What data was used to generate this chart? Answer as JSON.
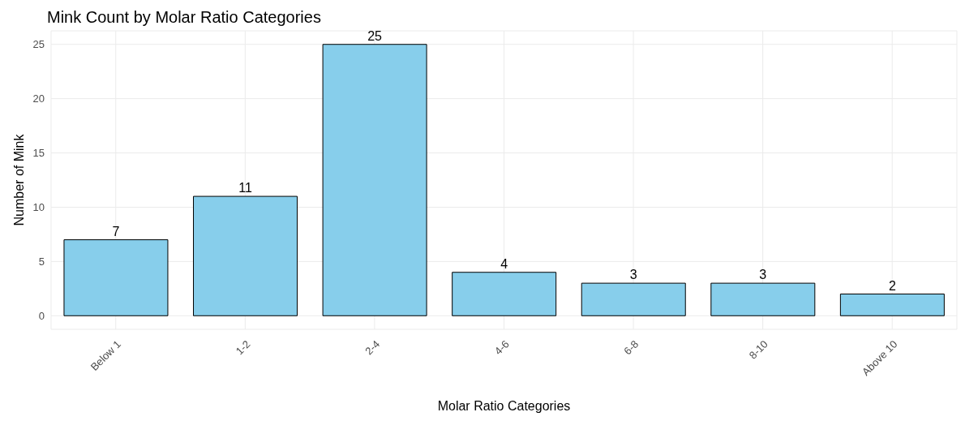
{
  "chart_data": {
    "type": "bar",
    "title": "Mink Count by Molar Ratio Categories",
    "xlabel": "Molar Ratio Categories",
    "ylabel": "Number of Mink",
    "categories": [
      "Below 1",
      "1-2",
      "2-4",
      "4-6",
      "6-8",
      "8-10",
      "Above 10"
    ],
    "values": [
      7,
      11,
      25,
      4,
      3,
      3,
      2
    ],
    "color": "#87ceeb",
    "ylim": [
      -1.25,
      26.25
    ],
    "yticks": [
      0,
      5,
      10,
      15,
      20,
      25
    ],
    "grid": true,
    "data_labels": true
  }
}
